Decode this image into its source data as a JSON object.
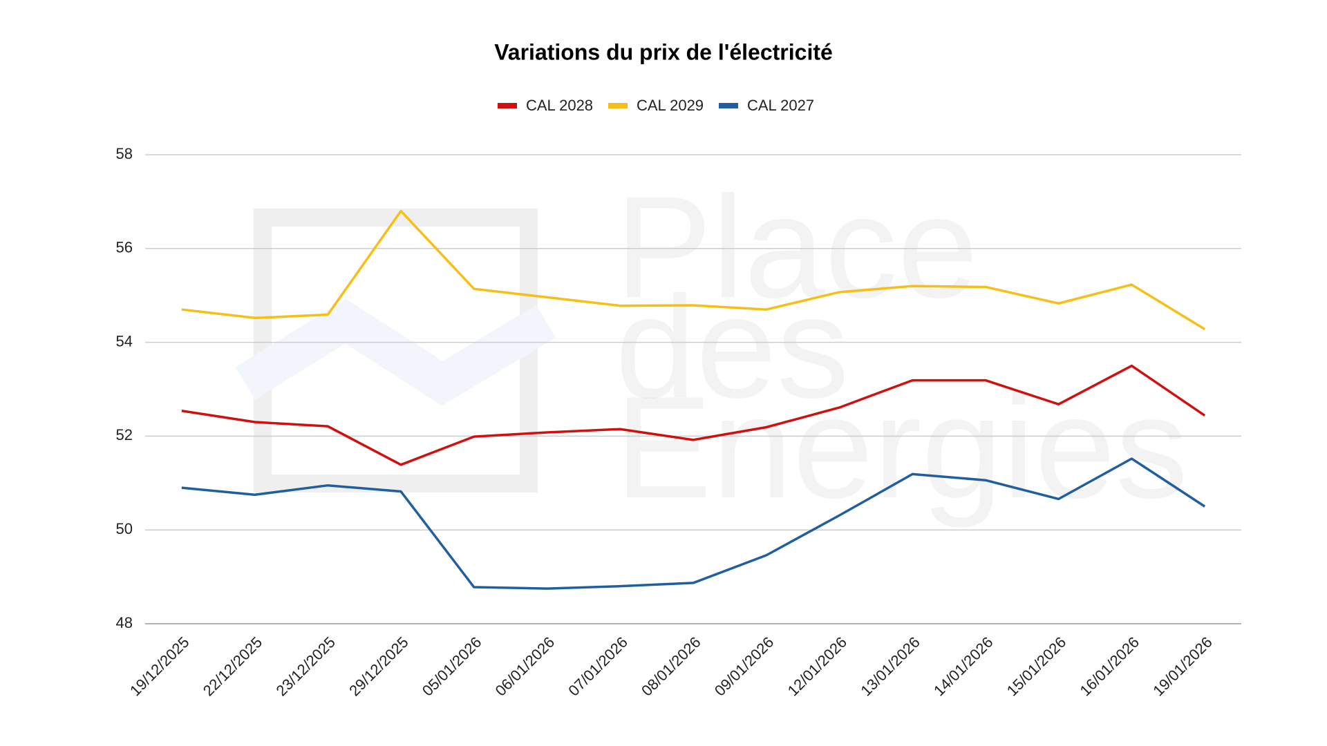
{
  "chart_data": {
    "type": "line",
    "title": "Variations du prix de l'électricité",
    "watermark": [
      "Place",
      "des",
      "Energies"
    ],
    "categories": [
      "19/12/2025",
      "22/12/2025",
      "23/12/2025",
      "29/12/2025",
      "05/01/2026",
      "06/01/2026",
      "07/01/2026",
      "08/01/2026",
      "09/01/2026",
      "12/01/2026",
      "13/01/2026",
      "14/01/2026",
      "15/01/2026",
      "16/01/2026",
      "19/01/2026"
    ],
    "series": [
      {
        "name": "CAL 2028",
        "color": "#d20f0f",
        "values": [
          52.54,
          52.3,
          52.21,
          51.39,
          51.99,
          52.08,
          52.15,
          51.92,
          52.19,
          52.61,
          53.19,
          53.19,
          52.68,
          53.5,
          52.44
        ]
      },
      {
        "name": "CAL 2029",
        "color": "#f7be16",
        "values": [
          54.7,
          54.52,
          54.59,
          56.8,
          55.14,
          54.96,
          54.78,
          54.79,
          54.7,
          55.07,
          55.2,
          55.18,
          54.83,
          55.23,
          54.28
        ]
      },
      {
        "name": "CAL 2027",
        "color": "#1f5fa0",
        "values": [
          50.9,
          50.75,
          50.95,
          50.82,
          48.78,
          48.75,
          48.8,
          48.87,
          49.46,
          50.31,
          51.19,
          51.06,
          50.66,
          51.52,
          50.5
        ]
      }
    ],
    "ylim": [
      48,
      58
    ],
    "yticks": [
      48,
      50,
      52,
      54,
      56,
      58
    ],
    "grid": true,
    "legend": "top"
  }
}
